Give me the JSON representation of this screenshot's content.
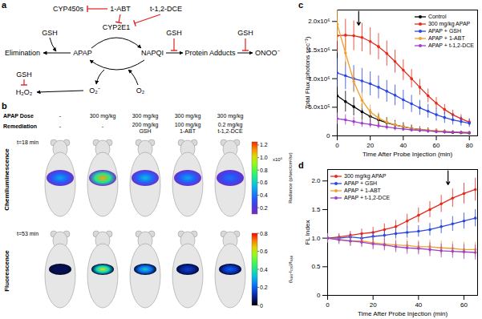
{
  "panel_labels": [
    "a",
    "b",
    "c",
    "d"
  ],
  "diagram": {
    "nodes": [
      "CYP450s",
      "1-ABT",
      "t-1,2-DCE",
      "CYP2E1",
      "GSH",
      "Elimination",
      "APAP",
      "NAPQI",
      "GSH",
      "Protein Adducts",
      "ONOO⁻",
      "GSH",
      "GSH",
      "H₂O₂",
      "O₂⁻",
      "O₂"
    ]
  },
  "images": {
    "apap_dose_label": "APAP Dose",
    "remediation_label": "Remediation",
    "apap_dose": [
      "-",
      "300 mg/kg",
      "300 mg/kg",
      "300 mg/kg",
      "300 mg/kg"
    ],
    "remediation": [
      "-",
      "-",
      "200 mg/kg GSH",
      "100 mg/kg 1-ABT",
      "0.2 mg/kg t-1,2-DCE"
    ],
    "rows": [
      {
        "label": "Chemiluminescence",
        "time": "t=18 min",
        "intensity": [
          0.5,
          1.1,
          0.55,
          0.5,
          0.4
        ],
        "colorbar": {
          "range": [
            0.1,
            1.25
          ],
          "ticks": [
            0.2,
            0.4,
            0.6,
            0.8,
            {
              "value": 1,
              "label": "1.0"
            },
            1.2
          ],
          "exponent": "x10⁵",
          "label": "Radiance (p/sec/cm²/sr)"
        }
      },
      {
        "label": "Fluorescence",
        "time": "t=53 min",
        "intensity": [
          0.05,
          0.6,
          0.35,
          0.15,
          0.2
        ],
        "colorbar": {
          "range": [
            0,
            0.8
          ],
          "ticks": [
            0,
            0.2,
            0.4,
            0.6,
            0.8
          ],
          "label": "(I₆₈₀-I₇₂₀)/I₆₈₀"
        }
      }
    ]
  },
  "chart_data": [
    {
      "type": "line",
      "x_label": "Time After Probe Injection (min)",
      "y_label": "Total Flux (photons sec⁻¹)",
      "xlim": [
        0,
        85
      ],
      "xticks": [
        0,
        20,
        40,
        60,
        80
      ],
      "ylim": [
        0,
        2200000
      ],
      "yticks": [
        0,
        {
          "value": 500000,
          "label": "5.0x10⁵"
        },
        {
          "value": 1000000,
          "label": "1.0x10⁶"
        },
        {
          "value": 1500000,
          "label": "1.5x10⁶"
        },
        {
          "value": 2000000,
          "label": "2.0x10⁶"
        }
      ],
      "legend": "upper right",
      "arrow_x": 13,
      "x": [
        0,
        5,
        10,
        15,
        20,
        25,
        30,
        35,
        40,
        45,
        50,
        55,
        60,
        65,
        70,
        75,
        80
      ],
      "series": [
        {
          "name": "Control",
          "color": "#000000",
          "values": [
            700000,
            600000,
            510000,
            420000,
            340000,
            280000,
            230000,
            190000,
            160000,
            130000,
            110000,
            95000,
            80000,
            70000,
            60000,
            55000,
            50000
          ],
          "errors": [
            200000,
            180000,
            160000,
            140000,
            120000,
            100000,
            90000,
            80000,
            70000,
            60000,
            50000,
            45000,
            40000,
            35000,
            30000,
            30000,
            25000
          ]
        },
        {
          "name": "300 mg/kg APAP",
          "color": "#e8291c",
          "values": [
            1750000,
            1760000,
            1750000,
            1720000,
            1650000,
            1560000,
            1440000,
            1300000,
            1150000,
            1000000,
            850000,
            700000,
            570000,
            460000,
            370000,
            300000,
            240000
          ],
          "errors": [
            300000,
            280000,
            260000,
            250000,
            240000,
            230000,
            220000,
            200000,
            180000,
            160000,
            140000,
            120000,
            100000,
            90000,
            80000,
            70000,
            60000
          ]
        },
        {
          "name": "APAP + GSH",
          "color": "#2a47e0",
          "values": [
            1100000,
            1050000,
            1000000,
            960000,
            910000,
            850000,
            780000,
            710000,
            630000,
            560000,
            490000,
            430000,
            370000,
            320000,
            280000,
            250000,
            220000
          ],
          "errors": [
            250000,
            240000,
            230000,
            220000,
            210000,
            200000,
            190000,
            180000,
            170000,
            150000,
            130000,
            120000,
            110000,
            100000,
            90000,
            80000,
            70000
          ]
        },
        {
          "name": "APAP + 1-ABT",
          "color": "#f0a030",
          "values": [
            1950000,
            1450000,
            950000,
            620000,
            420000,
            310000,
            240000,
            190000,
            160000,
            130000,
            110000,
            100000,
            90000,
            80000,
            70000,
            65000,
            60000
          ],
          "errors": [
            300000,
            250000,
            200000,
            150000,
            120000,
            100000,
            80000,
            60000,
            50000,
            40000,
            35000,
            30000,
            30000,
            25000,
            25000,
            20000,
            20000
          ]
        },
        {
          "name": "APAP + t-1,2-DCE",
          "color": "#a040c8",
          "values": [
            300000,
            280000,
            250000,
            220000,
            200000,
            175000,
            155000,
            135000,
            120000,
            105000,
            95000,
            85000,
            75000,
            70000,
            65000,
            60000,
            55000
          ],
          "errors": [
            100000,
            90000,
            80000,
            70000,
            60000,
            55000,
            50000,
            45000,
            40000,
            35000,
            30000,
            30000,
            25000,
            25000,
            20000,
            20000,
            20000
          ]
        }
      ]
    },
    {
      "type": "line",
      "x_label": "Time After Probe Injection (min)",
      "y_label": "FL Index",
      "xlim": [
        0,
        66
      ],
      "xticks": [
        0,
        20,
        40,
        60
      ],
      "ylim": [
        0,
        2.2
      ],
      "yticks": [
        0,
        0.5,
        {
          "value": 1,
          "label": "1.0"
        },
        1.5,
        {
          "value": 2,
          "label": "2.0"
        }
      ],
      "legend": "upper left",
      "arrow_x": 53,
      "x": [
        0,
        5,
        10,
        15,
        20,
        25,
        30,
        35,
        40,
        45,
        50,
        55,
        60,
        65
      ],
      "series": [
        {
          "name": "300 mg/kg APAP",
          "color": "#e8291c",
          "values": [
            1.0,
            1.02,
            1.05,
            1.08,
            1.1,
            1.15,
            1.2,
            1.3,
            1.4,
            1.5,
            1.6,
            1.7,
            1.78,
            1.85
          ],
          "errors": [
            0.05,
            0.06,
            0.07,
            0.08,
            0.09,
            0.1,
            0.11,
            0.12,
            0.13,
            0.14,
            0.15,
            0.16,
            0.18,
            0.2
          ]
        },
        {
          "name": "APAP + GSH",
          "color": "#2a47e0",
          "values": [
            1.0,
            1.0,
            1.02,
            1.0,
            1.03,
            1.05,
            1.08,
            1.1,
            1.12,
            1.15,
            1.2,
            1.25,
            1.3,
            1.35
          ],
          "errors": [
            0.05,
            0.06,
            0.06,
            0.07,
            0.08,
            0.08,
            0.09,
            0.1,
            0.1,
            0.11,
            0.12,
            0.13,
            0.14,
            0.15
          ]
        },
        {
          "name": "APAP + 1-ABT",
          "color": "#f0a030",
          "values": [
            1.0,
            0.98,
            0.95,
            0.95,
            0.92,
            0.9,
            0.88,
            0.87,
            0.85,
            0.85,
            0.83,
            0.82,
            0.8,
            0.8
          ],
          "errors": [
            0.08,
            0.08,
            0.09,
            0.09,
            0.1,
            0.1,
            0.1,
            0.11,
            0.11,
            0.12,
            0.12,
            0.12,
            0.13,
            0.13
          ]
        },
        {
          "name": "APAP + t-1,2-DCE",
          "color": "#a040c8",
          "values": [
            1.0,
            0.97,
            0.95,
            0.93,
            0.9,
            0.88,
            0.85,
            0.83,
            0.82,
            0.8,
            0.78,
            0.77,
            0.76,
            0.75
          ],
          "errors": [
            0.08,
            0.08,
            0.09,
            0.09,
            0.1,
            0.1,
            0.1,
            0.11,
            0.11,
            0.12,
            0.12,
            0.12,
            0.13,
            0.13
          ]
        }
      ]
    }
  ]
}
